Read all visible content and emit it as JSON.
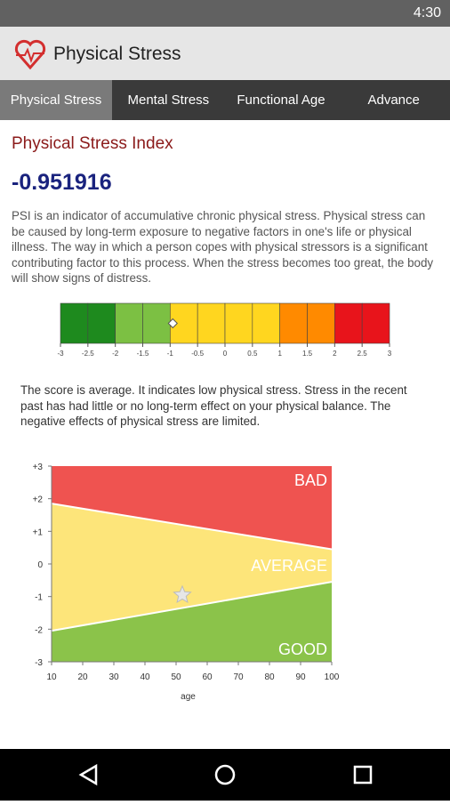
{
  "status_bar": {
    "time": "4:30"
  },
  "app_bar": {
    "title": "Physical Stress"
  },
  "tabs": [
    "Physical Stress",
    "Mental Stress",
    "Functional Age",
    "Advance"
  ],
  "section_title": "Physical Stress Index",
  "score": -0.951916,
  "description": "PSI is an indicator of accumulative chronic physical stress. Physical stress can be caused by long-term exposure to negative factors in one's life or physical illness. The way in which a person copes with physical stressors is a significant contributing factor to this process. When the stress becomes too great, the body will show signs of distress.",
  "scale": {
    "xlim": [
      -3,
      3
    ],
    "xticks": [
      -3,
      -2.5,
      -2,
      -1.5,
      -1,
      -0.5,
      0,
      0.5,
      1,
      1.5,
      2,
      2.5,
      3
    ],
    "colors": [
      "#1e8a1e",
      "#1e8a1e",
      "#7cc043",
      "#7cc043",
      "#ffd61f",
      "#ffd61f",
      "#ffd61f",
      "#ffd61f",
      "#ff8a00",
      "#ff8a00",
      "#e8141b",
      "#e8141b"
    ]
  },
  "summary": "The score is average. It indicates low physical stress. Stress in the recent past has had little or no long-term effect on your physical balance. The negative effects of physical stress are limited.",
  "chart": {
    "x_label": "age",
    "xlim": [
      10,
      100
    ],
    "ylim": [
      -3,
      3
    ],
    "xticks": [
      10,
      20,
      30,
      40,
      50,
      60,
      70,
      80,
      90,
      100
    ],
    "yticks": [
      {
        "value": 3,
        "label": "+3"
      },
      {
        "value": 2,
        "label": "+2"
      },
      {
        "value": 1,
        "label": "+1"
      },
      0,
      -1,
      -2,
      -3
    ],
    "upper_boundary": {
      "x": [
        10,
        100
      ],
      "values": [
        1.85,
        0.45
      ]
    },
    "lower_boundary": {
      "x": [
        10,
        100
      ],
      "values": [
        -2.05,
        -0.55
      ]
    },
    "point_x": 52,
    "zones": [
      {
        "name": "BAD",
        "color": "#ef5350"
      },
      {
        "name": "AVERAGE",
        "color": "#fde57a"
      },
      {
        "name": "GOOD",
        "color": "#8bc34a"
      }
    ]
  }
}
